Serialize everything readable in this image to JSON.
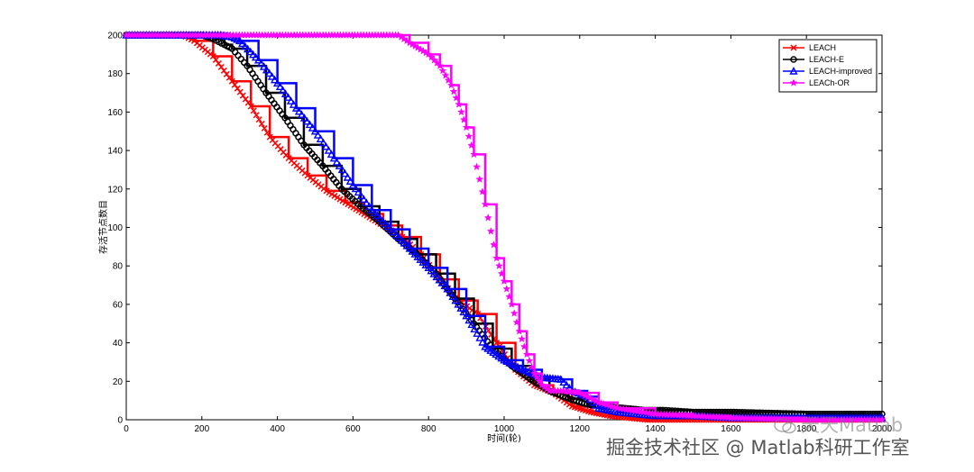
{
  "chart_data": {
    "type": "line",
    "title": "",
    "xlabel": "时间(轮)",
    "ylabel": "存活节点数目",
    "xlim": [
      0,
      2000
    ],
    "ylim": [
      0,
      200
    ],
    "xticks": [
      0,
      200,
      400,
      600,
      800,
      1000,
      1200,
      1400,
      1600,
      1800,
      2000
    ],
    "yticks": [
      0,
      20,
      40,
      60,
      80,
      100,
      120,
      140,
      160,
      180,
      200
    ],
    "grid": false,
    "legend_position": "top-right",
    "series": [
      {
        "name": "LEACH",
        "color": "#ff0000",
        "marker": "x",
        "x": [
          0,
          150,
          180,
          230,
          280,
          330,
          380,
          430,
          480,
          530,
          580,
          630,
          680,
          730,
          780,
          830,
          880,
          930,
          980,
          1030,
          1080,
          1130,
          1180,
          1230,
          1280,
          1330,
          1380,
          1430,
          1480,
          1550,
          1700,
          1900,
          2000
        ],
        "y": [
          200,
          200,
          197,
          189,
          176,
          163,
          147,
          136,
          127,
          119,
          113,
          107,
          101,
          95,
          86,
          73,
          62,
          55,
          40,
          26,
          18,
          14,
          7,
          4,
          2,
          1,
          0,
          0,
          0,
          0,
          0,
          0,
          0
        ]
      },
      {
        "name": "LEACH-E",
        "color": "#000000",
        "marker": "o",
        "x": [
          0,
          200,
          230,
          260,
          280,
          320,
          370,
          420,
          470,
          520,
          570,
          620,
          670,
          720,
          770,
          820,
          870,
          920,
          970,
          1020,
          1070,
          1120,
          1170,
          1220,
          1270,
          1320,
          1370,
          1420,
          1500,
          1600,
          1800,
          2000
        ],
        "y": [
          200,
          200,
          198,
          195,
          193,
          184,
          170,
          157,
          143,
          132,
          120,
          111,
          103,
          94,
          86,
          76,
          63,
          50,
          37,
          28,
          21,
          15,
          11,
          8,
          7,
          6,
          5,
          5,
          4,
          4,
          3,
          3
        ]
      },
      {
        "name": "LEACH-improved",
        "color": "#0000ff",
        "marker": "^",
        "x": [
          0,
          250,
          280,
          300,
          350,
          400,
          450,
          500,
          550,
          600,
          650,
          700,
          750,
          800,
          850,
          900,
          950,
          1000,
          1050,
          1100,
          1150,
          1180,
          1220,
          1250,
          1300,
          1350,
          1400,
          1500,
          1600,
          1700,
          1800,
          2000
        ],
        "y": [
          200,
          200,
          199,
          197,
          187,
          175,
          162,
          150,
          136,
          122,
          109,
          99,
          89,
          79,
          68,
          54,
          38,
          31,
          26,
          22,
          21,
          15,
          12,
          6,
          4,
          3,
          2,
          2,
          1,
          1,
          1,
          1
        ]
      },
      {
        "name": "LEACh-OR",
        "color": "#ff00ff",
        "marker": "*",
        "x": [
          0,
          720,
          750,
          800,
          830,
          860,
          880,
          900,
          920,
          950,
          980,
          1000,
          1020,
          1040,
          1060,
          1080,
          1100,
          1120,
          1150,
          1200,
          1250,
          1300,
          1400,
          1500,
          1600,
          1800,
          2000
        ],
        "y": [
          200,
          200,
          196,
          190,
          184,
          174,
          164,
          152,
          138,
          112,
          84,
          72,
          60,
          46,
          34,
          24,
          18,
          15,
          15,
          14,
          9,
          6,
          3,
          2,
          1,
          0,
          0
        ]
      }
    ]
  },
  "watermark": {
    "line1": "天天Matlab",
    "line2": "掘金技术社区 @ Matlab科研工作室"
  }
}
